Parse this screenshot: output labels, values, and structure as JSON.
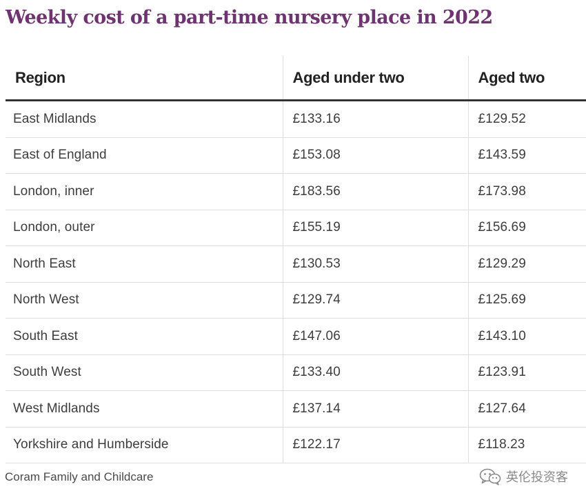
{
  "chart_data": {
    "type": "table",
    "title": "Weekly cost of a part-time nursery place in 2022",
    "columns": [
      "Region",
      "Aged under two",
      "Aged two"
    ],
    "rows": [
      [
        "East Midlands",
        "£133.16",
        "£129.52"
      ],
      [
        "East of England",
        "£153.08",
        "£143.59"
      ],
      [
        "London, inner",
        "£183.56",
        "£173.98"
      ],
      [
        "London, outer",
        "£155.19",
        "£156.69"
      ],
      [
        "North East",
        "£130.53",
        "£129.29"
      ],
      [
        "North West",
        "£129.74",
        "£125.69"
      ],
      [
        "South East",
        "£147.06",
        "£143.10"
      ],
      [
        "South West",
        "£133.40",
        "£123.91"
      ],
      [
        "West Midlands",
        "£137.14",
        "£127.64"
      ],
      [
        "Yorkshire and Humberside",
        "£122.17",
        "£118.23"
      ]
    ],
    "source": "Coram Family and Childcare"
  },
  "watermark": {
    "text": "英伦投资客",
    "icon": "wechat-icon"
  },
  "colors": {
    "title": "#6e3470",
    "header_rule": "#333333",
    "row_rule": "#dedede",
    "text": "#3d3d3d"
  }
}
